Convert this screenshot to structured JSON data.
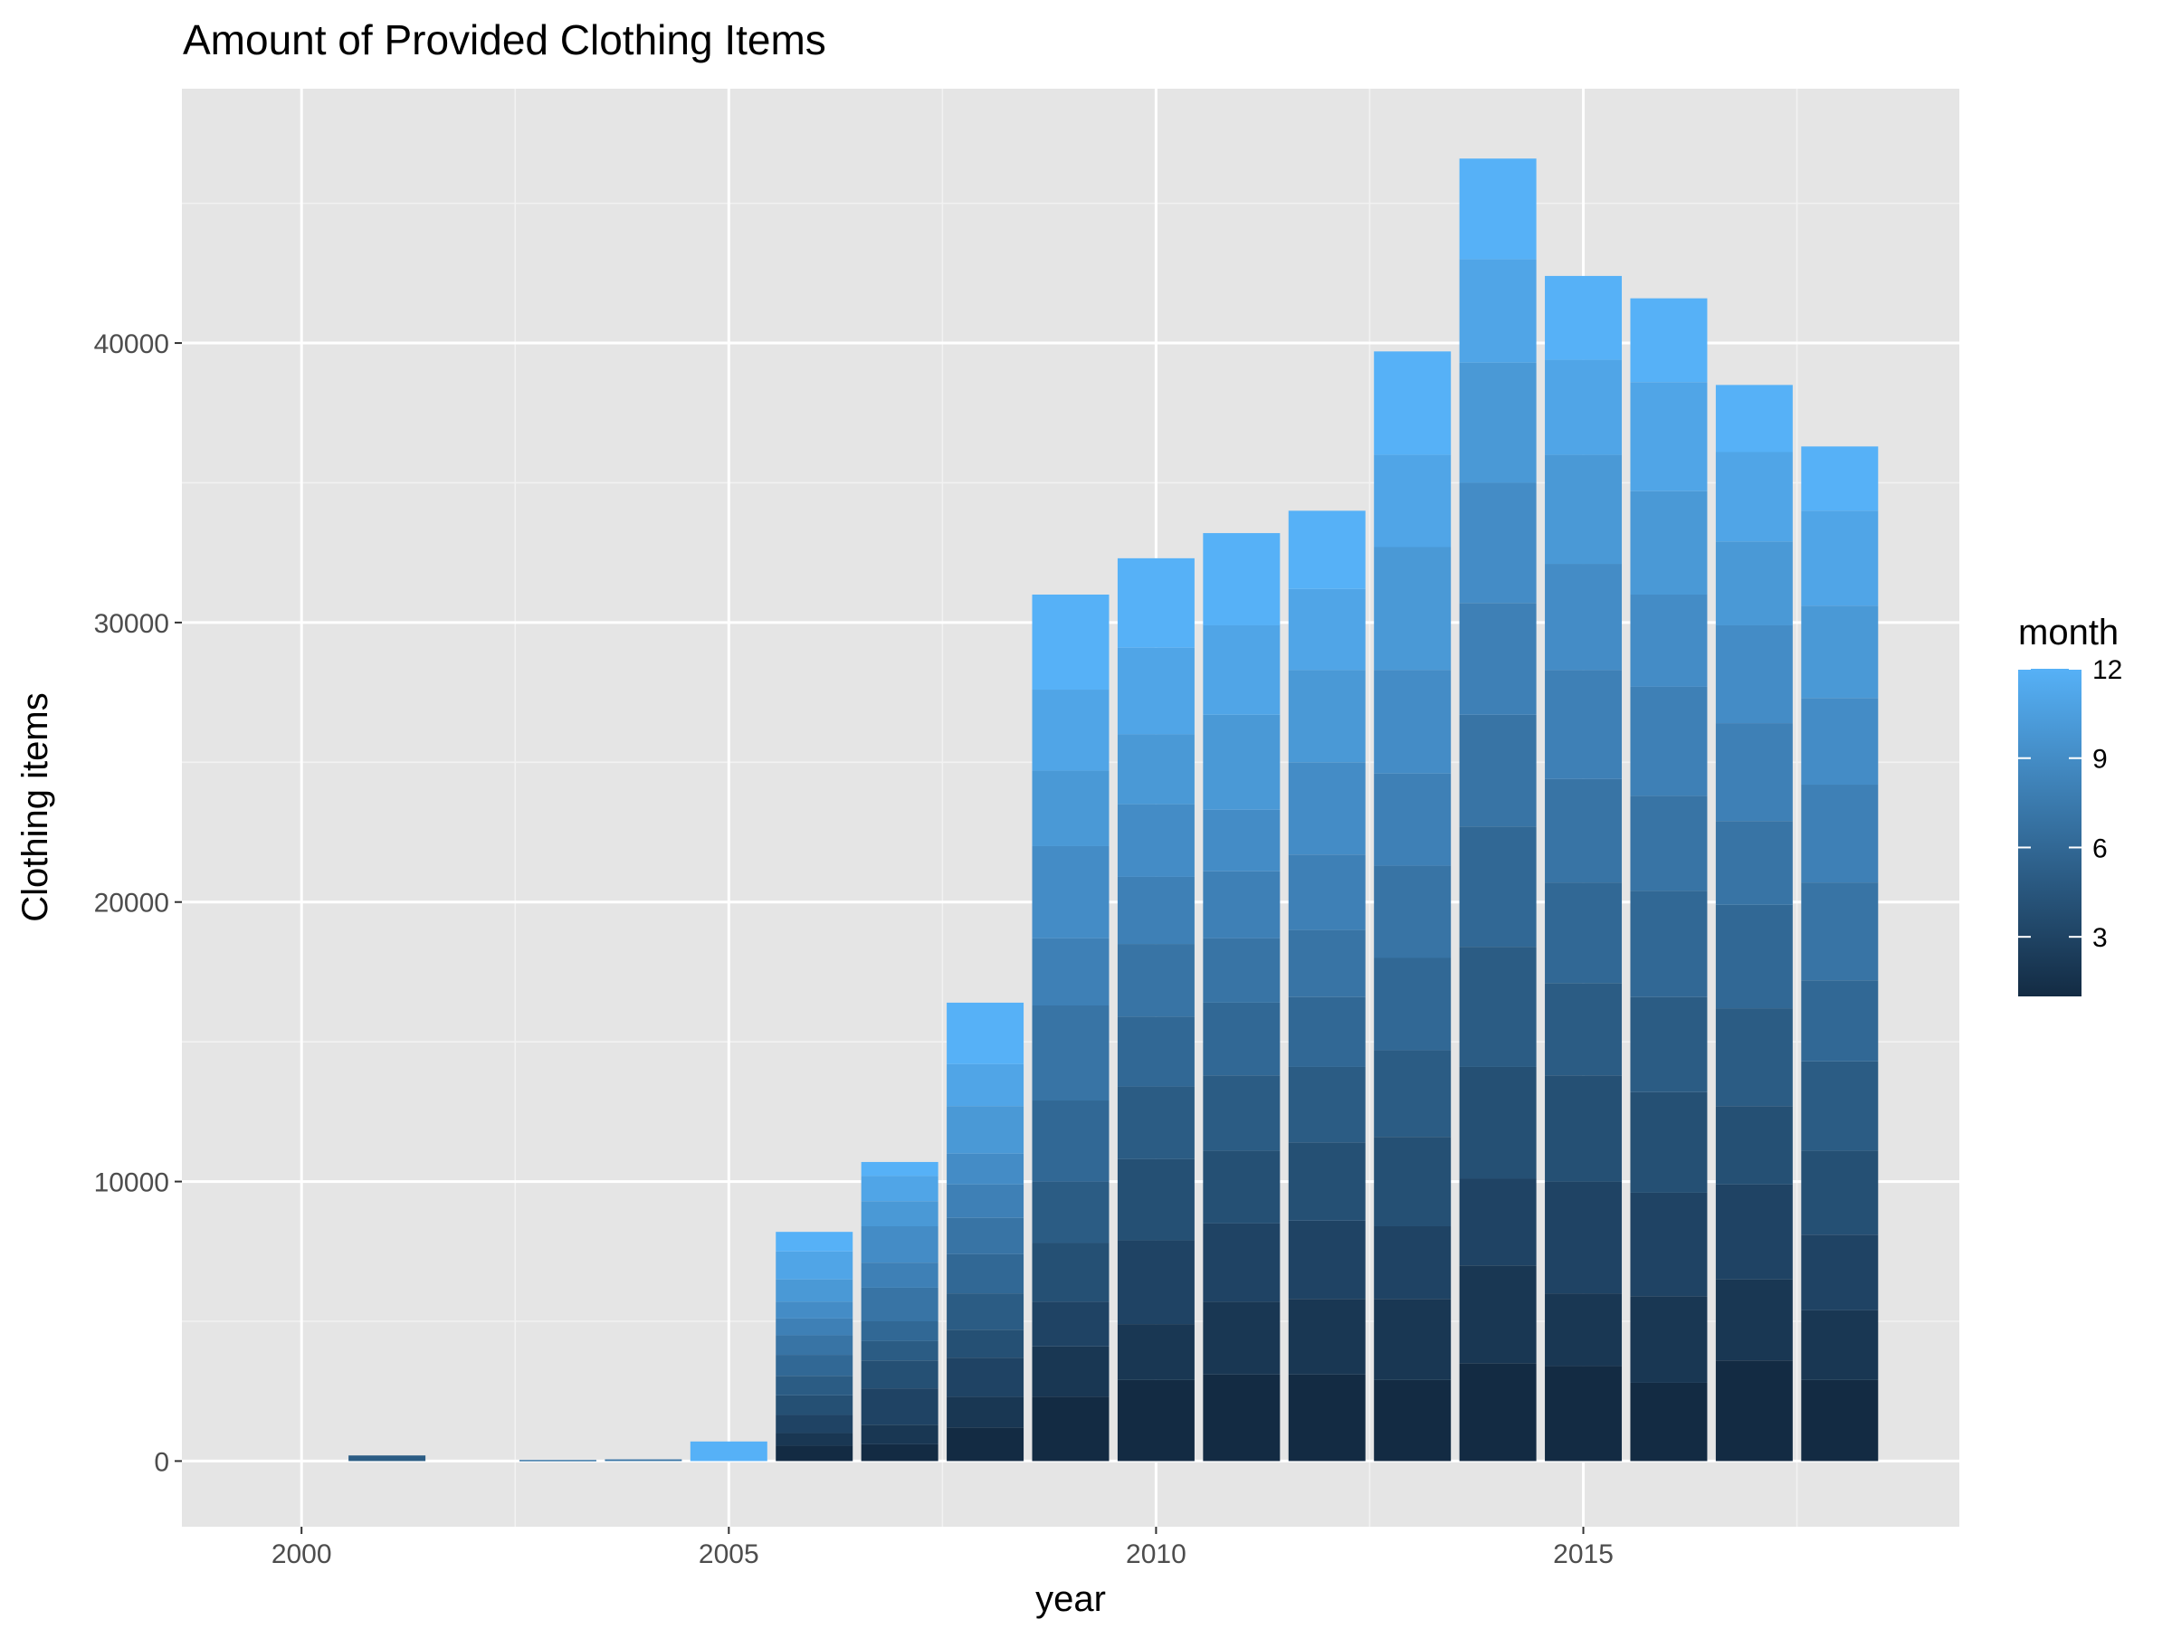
{
  "chart_data": {
    "type": "bar",
    "stacked": true,
    "title": "Amount of Provided Clothing Items",
    "xlabel": "year",
    "ylabel": "Clothing items",
    "xlim": [
      1998.6,
      2019.4
    ],
    "ylim": [
      -2350,
      49100
    ],
    "x_ticks": [
      2000,
      2005,
      2010,
      2015
    ],
    "x_tick_labels": [
      "2000",
      "2005",
      "2010",
      "2015"
    ],
    "y_ticks": [
      0,
      10000,
      20000,
      30000,
      40000
    ],
    "y_tick_labels": [
      "0",
      "10000",
      "20000",
      "30000",
      "40000"
    ],
    "grid": true,
    "legend": {
      "title": "month",
      "placement": "right",
      "type": "continuous-colorbar",
      "range": [
        1,
        12
      ],
      "breaks": [
        3,
        6,
        9,
        12
      ],
      "break_labels": [
        "3",
        "6",
        "9",
        "12"
      ],
      "color_low": "#132B43",
      "color_high": "#56B1F7"
    },
    "years": [
      2000,
      2001,
      2002,
      2003,
      2004,
      2005,
      2006,
      2007,
      2008,
      2009,
      2010,
      2011,
      2012,
      2013,
      2014,
      2015,
      2016,
      2017,
      2018
    ],
    "stacks": [
      [],
      [
        {
          "month": 5,
          "value": 200
        }
      ],
      [],
      [
        {
          "month": 7,
          "value": 40
        }
      ],
      [
        {
          "month": 7,
          "value": 60
        }
      ],
      [
        {
          "month": 12,
          "value": 700
        }
      ],
      [
        {
          "month": 1,
          "value": 550
        },
        {
          "month": 2,
          "value": 450
        },
        {
          "month": 3,
          "value": 650
        },
        {
          "month": 4,
          "value": 700
        },
        {
          "month": 5,
          "value": 700
        },
        {
          "month": 6,
          "value": 750
        },
        {
          "month": 7,
          "value": 700
        },
        {
          "month": 8,
          "value": 600
        },
        {
          "month": 9,
          "value": 600
        },
        {
          "month": 10,
          "value": 800
        },
        {
          "month": 11,
          "value": 1000
        },
        {
          "month": 12,
          "value": 700
        }
      ],
      [
        {
          "month": 1,
          "value": 600
        },
        {
          "month": 2,
          "value": 700
        },
        {
          "month": 3,
          "value": 1300
        },
        {
          "month": 4,
          "value": 1000
        },
        {
          "month": 5,
          "value": 700
        },
        {
          "month": 6,
          "value": 700
        },
        {
          "month": 7,
          "value": 1200
        },
        {
          "month": 8,
          "value": 900
        },
        {
          "month": 9,
          "value": 1300
        },
        {
          "month": 10,
          "value": 900
        },
        {
          "month": 11,
          "value": 900
        },
        {
          "month": 12,
          "value": 500
        }
      ],
      [
        {
          "month": 1,
          "value": 1200
        },
        {
          "month": 2,
          "value": 1100
        },
        {
          "month": 3,
          "value": 1400
        },
        {
          "month": 4,
          "value": 1000
        },
        {
          "month": 5,
          "value": 1300
        },
        {
          "month": 6,
          "value": 1400
        },
        {
          "month": 7,
          "value": 1300
        },
        {
          "month": 8,
          "value": 1200
        },
        {
          "month": 9,
          "value": 1100
        },
        {
          "month": 10,
          "value": 1700
        },
        {
          "month": 11,
          "value": 1500
        },
        {
          "month": 12,
          "value": 2200
        }
      ],
      [
        {
          "month": 1,
          "value": 2300
        },
        {
          "month": 2,
          "value": 1800
        },
        {
          "month": 3,
          "value": 1600
        },
        {
          "month": 4,
          "value": 2100
        },
        {
          "month": 5,
          "value": 2200
        },
        {
          "month": 6,
          "value": 2900
        },
        {
          "month": 7,
          "value": 3400
        },
        {
          "month": 8,
          "value": 2400
        },
        {
          "month": 9,
          "value": 3300
        },
        {
          "month": 10,
          "value": 2700
        },
        {
          "month": 11,
          "value": 2900
        },
        {
          "month": 12,
          "value": 3400
        }
      ],
      [
        {
          "month": 1,
          "value": 2900
        },
        {
          "month": 2,
          "value": 2000
        },
        {
          "month": 3,
          "value": 3000
        },
        {
          "month": 4,
          "value": 2900
        },
        {
          "month": 5,
          "value": 2600
        },
        {
          "month": 6,
          "value": 2500
        },
        {
          "month": 7,
          "value": 2600
        },
        {
          "month": 8,
          "value": 2400
        },
        {
          "month": 9,
          "value": 2600
        },
        {
          "month": 10,
          "value": 2500
        },
        {
          "month": 11,
          "value": 3100
        },
        {
          "month": 12,
          "value": 3200
        }
      ],
      [
        {
          "month": 1,
          "value": 3100
        },
        {
          "month": 2,
          "value": 2600
        },
        {
          "month": 3,
          "value": 2800
        },
        {
          "month": 4,
          "value": 2600
        },
        {
          "month": 5,
          "value": 2700
        },
        {
          "month": 6,
          "value": 2600
        },
        {
          "month": 7,
          "value": 2300
        },
        {
          "month": 8,
          "value": 2400
        },
        {
          "month": 9,
          "value": 2200
        },
        {
          "month": 10,
          "value": 3400
        },
        {
          "month": 11,
          "value": 3200
        },
        {
          "month": 12,
          "value": 3300
        }
      ],
      [
        {
          "month": 1,
          "value": 3100
        },
        {
          "month": 2,
          "value": 2700
        },
        {
          "month": 3,
          "value": 2800
        },
        {
          "month": 4,
          "value": 2800
        },
        {
          "month": 5,
          "value": 2700
        },
        {
          "month": 6,
          "value": 2500
        },
        {
          "month": 7,
          "value": 2400
        },
        {
          "month": 8,
          "value": 2700
        },
        {
          "month": 9,
          "value": 3300
        },
        {
          "month": 10,
          "value": 3300
        },
        {
          "month": 11,
          "value": 2900
        },
        {
          "month": 12,
          "value": 2800
        }
      ],
      [
        {
          "month": 1,
          "value": 2900
        },
        {
          "month": 2,
          "value": 2900
        },
        {
          "month": 3,
          "value": 2600
        },
        {
          "month": 4,
          "value": 3200
        },
        {
          "month": 5,
          "value": 3100
        },
        {
          "month": 6,
          "value": 3300
        },
        {
          "month": 7,
          "value": 3300
        },
        {
          "month": 8,
          "value": 3300
        },
        {
          "month": 9,
          "value": 3700
        },
        {
          "month": 10,
          "value": 4400
        },
        {
          "month": 11,
          "value": 3300
        },
        {
          "month": 12,
          "value": 3700
        }
      ],
      [
        {
          "month": 1,
          "value": 3500
        },
        {
          "month": 2,
          "value": 3500
        },
        {
          "month": 3,
          "value": 3100
        },
        {
          "month": 4,
          "value": 4000
        },
        {
          "month": 5,
          "value": 4300
        },
        {
          "month": 6,
          "value": 4300
        },
        {
          "month": 7,
          "value": 4000
        },
        {
          "month": 8,
          "value": 4000
        },
        {
          "month": 9,
          "value": 4300
        },
        {
          "month": 10,
          "value": 4300
        },
        {
          "month": 11,
          "value": 3700
        },
        {
          "month": 12,
          "value": 3600
        }
      ],
      [
        {
          "month": 1,
          "value": 3400
        },
        {
          "month": 2,
          "value": 2600
        },
        {
          "month": 3,
          "value": 4000
        },
        {
          "month": 4,
          "value": 3800
        },
        {
          "month": 5,
          "value": 3300
        },
        {
          "month": 6,
          "value": 3600
        },
        {
          "month": 7,
          "value": 3700
        },
        {
          "month": 8,
          "value": 3900
        },
        {
          "month": 9,
          "value": 3800
        },
        {
          "month": 10,
          "value": 3900
        },
        {
          "month": 11,
          "value": 3400
        },
        {
          "month": 12,
          "value": 3000
        }
      ],
      [
        {
          "month": 1,
          "value": 2800
        },
        {
          "month": 2,
          "value": 3100
        },
        {
          "month": 3,
          "value": 3700
        },
        {
          "month": 4,
          "value": 3600
        },
        {
          "month": 5,
          "value": 3400
        },
        {
          "month": 6,
          "value": 3800
        },
        {
          "month": 7,
          "value": 3400
        },
        {
          "month": 8,
          "value": 3900
        },
        {
          "month": 9,
          "value": 3300
        },
        {
          "month": 10,
          "value": 3700
        },
        {
          "month": 11,
          "value": 3900
        },
        {
          "month": 12,
          "value": 3000
        }
      ],
      [
        {
          "month": 1,
          "value": 3600
        },
        {
          "month": 2,
          "value": 2900
        },
        {
          "month": 3,
          "value": 3400
        },
        {
          "month": 4,
          "value": 2800
        },
        {
          "month": 5,
          "value": 3500
        },
        {
          "month": 6,
          "value": 3700
        },
        {
          "month": 7,
          "value": 3000
        },
        {
          "month": 8,
          "value": 3500
        },
        {
          "month": 9,
          "value": 3500
        },
        {
          "month": 10,
          "value": 3000
        },
        {
          "month": 11,
          "value": 3200
        },
        {
          "month": 12,
          "value": 2400
        }
      ],
      [
        {
          "month": 1,
          "value": 2900
        },
        {
          "month": 2,
          "value": 2500
        },
        {
          "month": 3,
          "value": 2700
        },
        {
          "month": 4,
          "value": 3000
        },
        {
          "month": 5,
          "value": 3200
        },
        {
          "month": 6,
          "value": 2900
        },
        {
          "month": 7,
          "value": 3500
        },
        {
          "month": 8,
          "value": 3500
        },
        {
          "month": 9,
          "value": 3100
        },
        {
          "month": 10,
          "value": 3300
        },
        {
          "month": 11,
          "value": 3400
        },
        {
          "month": 12,
          "value": 2300
        }
      ]
    ]
  }
}
